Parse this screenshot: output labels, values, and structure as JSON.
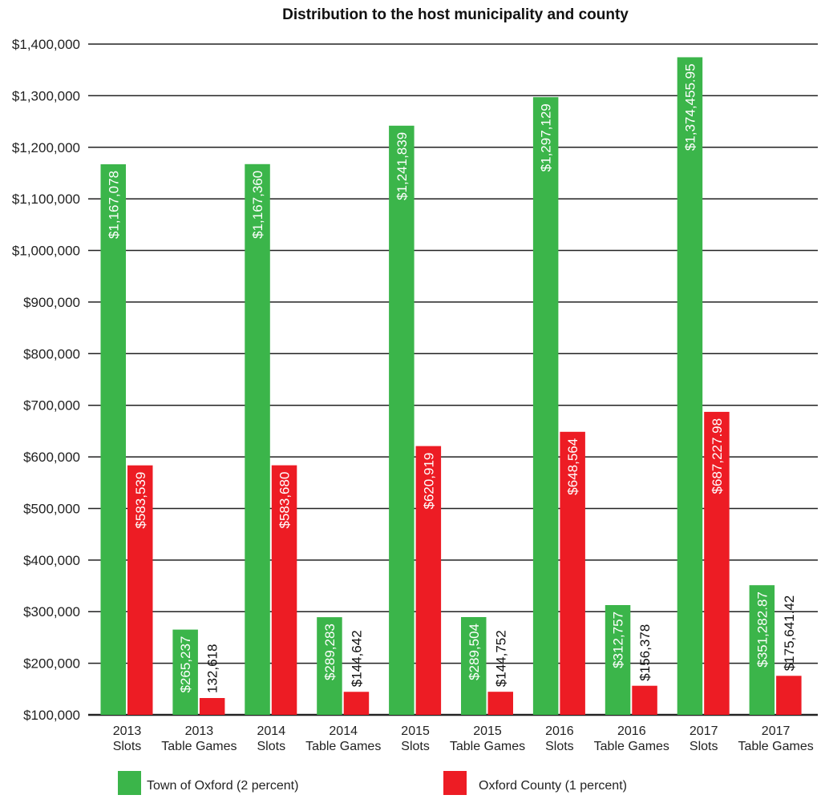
{
  "chart_data": {
    "type": "bar",
    "title": "Distribution to the host municipality and county",
    "xlabel": "",
    "ylabel": "",
    "ylim": [
      100000,
      1400000
    ],
    "yticks": [
      "$100,000",
      "$200,000",
      "$300,000",
      "$400,000",
      "$500,000",
      "$600,000",
      "$700,000",
      "$800,000",
      "$900,000",
      "$1,000,000",
      "$1,100,000",
      "$1,200,000",
      "$1,300,000",
      "$1,400,000"
    ],
    "grid": true,
    "legend_position": "bottom",
    "categories": [
      [
        "2013",
        "Slots"
      ],
      [
        "2013",
        "Table Games"
      ],
      [
        "2014",
        "Slots"
      ],
      [
        "2014",
        "Table Games"
      ],
      [
        "2015",
        "Slots"
      ],
      [
        "2015",
        "Table Games"
      ],
      [
        "2016",
        "Slots"
      ],
      [
        "2016",
        "Table Games"
      ],
      [
        "2017",
        "Slots"
      ],
      [
        "2017",
        "Table Games"
      ]
    ],
    "series": [
      {
        "name": "Town of Oxford (2 percent)",
        "color": "#3bb54a",
        "values": [
          1167078,
          265237,
          1167360,
          289283,
          1241839,
          289504,
          1297129,
          312757,
          1374455.95,
          351282.87
        ],
        "labels": [
          "$1,167,078",
          "$265,237",
          "$1,167,360",
          "$289,283",
          "$1,241,839",
          "$289,504",
          "$1,297,129",
          "$312,757",
          "$1,374,455.95",
          "$351,282.87"
        ]
      },
      {
        "name": "Oxford County (1 percent)",
        "color": "#ed1c24",
        "values": [
          583539,
          132618,
          583680,
          144642,
          620919,
          144752,
          648564,
          156378,
          687227.98,
          175641.42
        ],
        "labels": [
          "$583,539",
          "132,618",
          "$583,680",
          "$144,642",
          "$620,919",
          "$144,752",
          "$648,564",
          "$156,378",
          "$687,227.98",
          "$175,641.42"
        ]
      }
    ]
  }
}
